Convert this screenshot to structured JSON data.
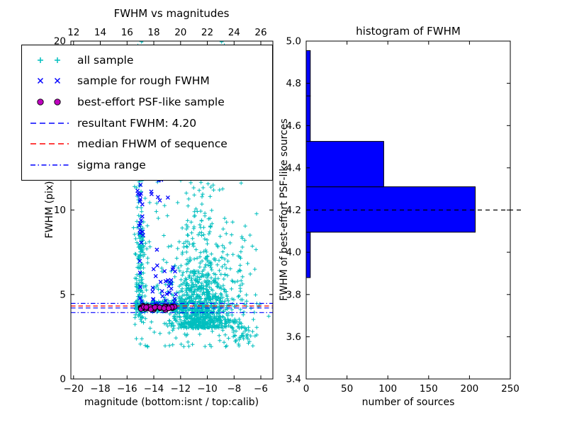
{
  "chart_data": [
    {
      "id": "fwhm_vs_magnitudes",
      "type": "scatter",
      "title": "FWHM vs magnitudes",
      "xlabel": "magnitude (bottom:isnt / top:calib)",
      "ylabel": "FWHM (pix)",
      "xlim": [
        -20.2,
        -5.1
      ],
      "ylim": [
        0,
        20
      ],
      "grid": false,
      "xticks": {
        "values": [
          -20,
          -18,
          -16,
          -14,
          -12,
          -10,
          -8,
          -6
        ],
        "labels": [
          "−20",
          "−18",
          "−16",
          "−14",
          "−12",
          "−10",
          "−8",
          "−6"
        ]
      },
      "top_xticks": {
        "lim": [
          11.8,
          26.9
        ],
        "values": [
          12,
          14,
          16,
          18,
          20,
          22,
          24,
          26
        ],
        "labels": [
          "12",
          "14",
          "16",
          "18",
          "20",
          "22",
          "24",
          "26"
        ]
      },
      "yticks": {
        "values": [
          0,
          5,
          10,
          15,
          20
        ],
        "labels": [
          "0",
          "5",
          "10",
          "15",
          "20"
        ]
      },
      "series": [
        {
          "name": "all sample",
          "marker": "plus",
          "color": "#00bfbf",
          "clusters": [
            {
              "count": 150,
              "x": {
                "type": "normal",
                "mu": -15.05,
                "sigma": 0.15
              },
              "y": {
                "type": "uniform",
                "min": 3.5,
                "max": 20
              }
            },
            {
              "count": 90,
              "x": {
                "type": "normal",
                "mu": -15.0,
                "sigma": 0.2
              },
              "y": {
                "type": "uniform",
                "min": 3.3,
                "max": 9
              }
            },
            {
              "count": 900,
              "x": {
                "type": "normal",
                "mu": -10.4,
                "sigma": 1.15
              },
              "y": {
                "type": "exp",
                "offset": 3.0,
                "scale": 1.8,
                "max": 14
              }
            },
            {
              "count": 260,
              "x": {
                "type": "uniform",
                "min": -15.4,
                "max": -11.5
              },
              "y": {
                "type": "normal",
                "mu": 4.3,
                "sigma": 0.17
              }
            },
            {
              "count": 240,
              "x": {
                "type": "uniform",
                "min": -15.5,
                "max": -6.3
              },
              "y": {
                "type": "uniform_pow",
                "min": 1.9,
                "max": 20,
                "pow": 1.8
              }
            },
            {
              "count": 70,
              "x": {
                "type": "normal",
                "mu": -7.4,
                "sigma": 0.7
              },
              "y": {
                "type": "exp",
                "offset": 2.2,
                "scale": 1.6,
                "max": 9
              }
            }
          ]
        },
        {
          "name": "sample for rough FWHM",
          "marker": "x",
          "color": "#0000ff",
          "clusters": [
            {
              "count": 24,
              "x": {
                "type": "normal",
                "mu": -15.0,
                "sigma": 0.12
              },
              "y": {
                "type": "uniform",
                "min": 4.3,
                "max": 12
              }
            },
            {
              "count": 32,
              "x": {
                "type": "uniform",
                "min": -14.1,
                "max": -12.3
              },
              "y": {
                "type": "exp",
                "offset": 4.3,
                "scale": 1.1,
                "max": 8.5
              }
            },
            {
              "count": 8,
              "x": {
                "type": "uniform",
                "min": -14.2,
                "max": -12.3
              },
              "y": {
                "type": "uniform",
                "min": 10.4,
                "max": 12
              }
            }
          ]
        },
        {
          "name": "best-effort PSF-like sample",
          "marker": "circle",
          "color": "#bf00bf",
          "edge_color": "#000000",
          "clusters": [
            {
              "count": 42,
              "x": {
                "type": "uniform",
                "min": -15.05,
                "max": -12.4
              },
              "y": {
                "type": "normal",
                "mu": 4.22,
                "sigma": 0.06
              }
            }
          ]
        }
      ],
      "hlines": [
        {
          "label": "resultant FWHM: 4.20",
          "y": 4.2,
          "color": "#0000ff",
          "dash": "dashed"
        },
        {
          "label": "median FHWM of sequence",
          "y": 4.32,
          "color": "#ff0000",
          "dash": "dashed"
        },
        {
          "label": "sigma range upper",
          "y": 4.47,
          "color": "#0000ff",
          "dash": "dashdot"
        },
        {
          "label": "sigma range lower",
          "y": 3.93,
          "color": "#0000ff",
          "dash": "dashdot"
        }
      ],
      "legend": {
        "position": "upper left",
        "entries": [
          {
            "label": "all sample",
            "swatch": "markers",
            "marker": "plus",
            "color": "#00bfbf"
          },
          {
            "label": "sample for rough FWHM",
            "swatch": "markers",
            "marker": "x",
            "color": "#0000ff"
          },
          {
            "label": "best-effort PSF-like sample",
            "swatch": "markers",
            "marker": "circle",
            "color": "#bf00bf"
          },
          {
            "label": "resultant FWHM: 4.20",
            "swatch": "line",
            "dash": "dashed",
            "color": "#0000ff"
          },
          {
            "label": "median FHWM of sequence",
            "swatch": "line",
            "dash": "dashed",
            "color": "#ff0000"
          },
          {
            "label": "sigma range",
            "swatch": "line",
            "dash": "dashdot",
            "color": "#0000ff"
          }
        ]
      }
    },
    {
      "id": "histogram_of_fwhm",
      "type": "bar",
      "orientation": "horizontal",
      "title": "histogram of FWHM",
      "xlabel": "number of sources",
      "ylabel": "FWHM of best-effort PSF-like sources",
      "xlim": [
        0,
        250
      ],
      "ylim": [
        3.4,
        5.0
      ],
      "xticks": {
        "values": [
          0,
          50,
          100,
          150,
          200,
          250
        ],
        "labels": [
          "0",
          "50",
          "100",
          "150",
          "200",
          "250"
        ]
      },
      "yticks": {
        "values": [
          3.4,
          3.6,
          3.8,
          4.0,
          4.2,
          4.4,
          4.6,
          4.8,
          5.0
        ],
        "labels": [
          "3.4",
          "3.6",
          "3.8",
          "4.0",
          "4.2",
          "4.4",
          "4.6",
          "4.8",
          "5.0"
        ]
      },
      "bar_color": "#0000ff",
      "bar_edge_color": "#000000",
      "bins": [
        {
          "from": 3.88,
          "to": 4.095,
          "count": 5
        },
        {
          "from": 4.095,
          "to": 4.31,
          "count": 207
        },
        {
          "from": 4.31,
          "to": 4.525,
          "count": 95
        },
        {
          "from": 4.525,
          "to": 4.74,
          "count": 5
        },
        {
          "from": 4.74,
          "to": 4.955,
          "count": 5
        }
      ],
      "marker_line": {
        "y": 4.2,
        "color": "#000000",
        "dash": "dashed"
      }
    }
  ]
}
